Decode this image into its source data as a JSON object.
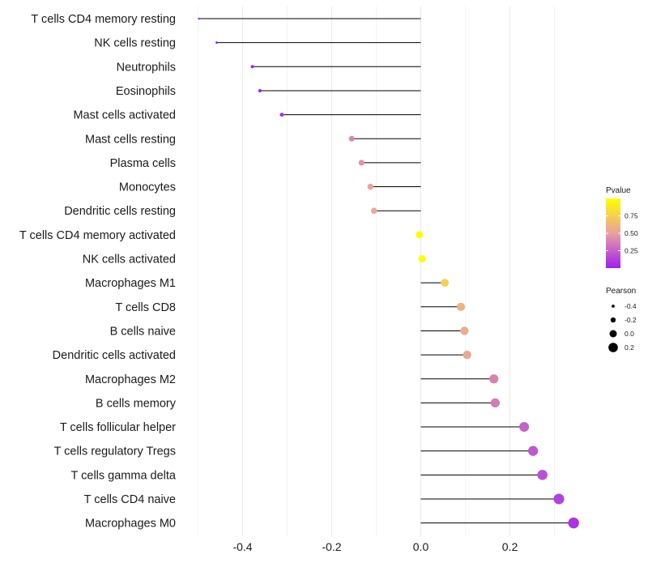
{
  "chart_data": {
    "type": "lollipop",
    "title": "",
    "xlabel": "",
    "ylabel": "",
    "xlim": [
      -0.5,
      0.35
    ],
    "x_ticks": [
      -0.4,
      -0.2,
      0.0,
      0.2
    ],
    "x_tick_labels": [
      "-0.4",
      "-0.2",
      "0.0",
      "0.2"
    ],
    "grid": true,
    "categories": [
      "T cells CD4 memory resting",
      "NK cells resting",
      "Neutrophils",
      "Eosinophils",
      "Mast cells activated",
      "Mast cells resting",
      "Plasma cells",
      "Monocytes",
      "Dendritic cells resting",
      "T cells CD4 memory activated",
      "NK cells activated",
      "Macrophages M1",
      "T cells CD8",
      "B cells naive",
      "Dendritic cells activated",
      "Macrophages M2",
      "B cells memory",
      "T cells follicular helper",
      "T cells regulatory  Tregs ",
      "T cells gamma delta",
      "T cells CD4 naive",
      "Macrophages M0"
    ],
    "pearson": [
      -0.498,
      -0.458,
      -0.378,
      -0.361,
      -0.312,
      -0.155,
      -0.133,
      -0.113,
      -0.105,
      -0.003,
      0.003,
      0.054,
      0.09,
      0.098,
      0.104,
      0.164,
      0.167,
      0.232,
      0.252,
      0.273,
      0.31,
      0.343
    ],
    "pvalue": [
      0.001,
      0.005,
      0.02,
      0.03,
      0.06,
      0.4,
      0.45,
      0.52,
      0.55,
      0.99,
      0.98,
      0.75,
      0.6,
      0.57,
      0.54,
      0.38,
      0.36,
      0.26,
      0.22,
      0.19,
      0.13,
      0.08
    ],
    "legend": {
      "color": {
        "title": "Pvalue",
        "ticks": [
          0.25,
          0.5,
          0.75
        ],
        "tick_labels": [
          "0.25",
          "0.50",
          "0.75"
        ],
        "range": [
          0.0,
          1.0
        ],
        "low_color": "#a020f0",
        "mid_color": "#e8a0a0",
        "high_color": "#ffff00"
      },
      "size": {
        "title": "Pearson",
        "values": [
          -0.4,
          -0.2,
          0.0,
          0.2
        ],
        "labels": [
          "-0.4",
          "-0.2",
          "0.0",
          "0.2"
        ]
      },
      "position": "right"
    }
  },
  "colors": {
    "stem": "#000000",
    "grid": "#ebebeb",
    "text": "#1a1a1a"
  }
}
